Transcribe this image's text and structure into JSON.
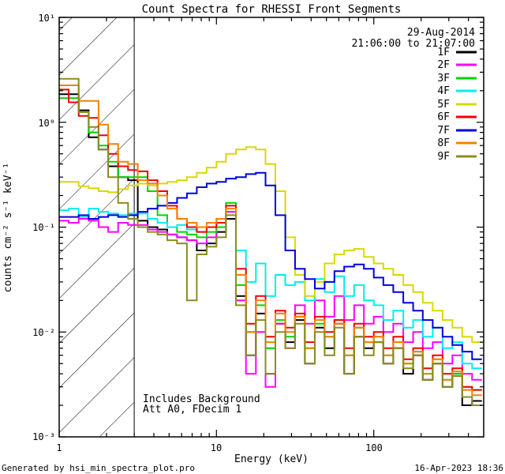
{
  "header": {
    "date": "29-Aug-2014",
    "time_range": "21:06:00 to 21:07:00"
  },
  "annotations": {
    "line1": "Includes Background",
    "line2": "Att A0, FDecim 1"
  },
  "footer": {
    "left": "Generated by hsi_min_spectra_plot.pro",
    "right": "16-Apr-2023 18:36"
  },
  "chart_data": {
    "type": "line",
    "title": "Count Spectra for RHESSI Front Segments",
    "xlabel": "Energy (keV)",
    "ylabel": "counts cm⁻² s⁻¹ keV⁻¹",
    "xscale": "log",
    "yscale": "log",
    "xlim": [
      1,
      500
    ],
    "ylim": [
      0.001,
      10
    ],
    "grid": false,
    "legend_position": "top-right",
    "xticks": {
      "values": [
        1,
        10,
        100
      ],
      "labels": [
        "1",
        "10",
        "100"
      ]
    },
    "yticks": {
      "values": [
        10,
        1,
        0.1,
        0.01,
        0.001
      ],
      "labels": [
        "10¹",
        "10⁰",
        "10⁻¹",
        "10⁻²",
        "10⁻³"
      ]
    },
    "hatch_region": {
      "xmin": 1,
      "xmax": 3
    },
    "bin_edges": [
      1,
      1.15,
      1.33,
      1.54,
      1.78,
      2.05,
      2.37,
      2.74,
      3.16,
      3.65,
      4.22,
      4.87,
      5.62,
      6.49,
      7.5,
      8.66,
      10,
      11.5,
      13.3,
      15.4,
      17.8,
      20.5,
      23.7,
      27.4,
      31.6,
      36.5,
      42.2,
      48.7,
      56.2,
      64.9,
      75,
      86.6,
      100,
      115,
      133,
      154,
      178,
      205,
      237,
      274,
      316,
      365,
      422,
      487
    ],
    "series": [
      {
        "name": "1F",
        "color": "#000000",
        "values": [
          1.85,
          1.85,
          1.3,
          0.72,
          0.55,
          0.38,
          0.3,
          0.28,
          0.115,
          0.1,
          0.095,
          0.085,
          0.08,
          0.075,
          0.06,
          0.07,
          0.09,
          0.12,
          0.022,
          0.006,
          0.015,
          0.004,
          0.012,
          0.008,
          0.013,
          0.005,
          0.011,
          0.007,
          0.012,
          0.004,
          0.009,
          0.007,
          0.008,
          0.005,
          0.007,
          0.004,
          0.006,
          0.0035,
          0.005,
          0.003,
          0.004,
          0.002,
          0.0022
        ]
      },
      {
        "name": "2F",
        "color": "#ff00ff",
        "values": [
          0.115,
          0.11,
          0.12,
          0.115,
          0.1,
          0.09,
          0.11,
          0.105,
          0.105,
          0.095,
          0.09,
          0.085,
          0.08,
          0.075,
          0.07,
          0.08,
          0.1,
          0.14,
          0.02,
          0.004,
          0.01,
          0.003,
          0.012,
          0.007,
          0.018,
          0.012,
          0.02,
          0.014,
          0.022,
          0.013,
          0.018,
          0.012,
          0.014,
          0.01,
          0.012,
          0.008,
          0.01,
          0.007,
          0.008,
          0.005,
          0.006,
          0.004,
          0.0035
        ]
      },
      {
        "name": "3F",
        "color": "#00d500",
        "values": [
          1.7,
          1.7,
          1.25,
          0.8,
          0.6,
          0.42,
          0.3,
          0.3,
          0.3,
          0.22,
          0.13,
          0.1,
          0.09,
          0.085,
          0.08,
          0.09,
          0.1,
          0.17,
          0.028,
          0.01,
          0.018,
          0.007,
          0.013,
          0.009,
          0.014,
          0.007,
          0.012,
          0.009,
          0.013,
          0.006,
          0.011,
          0.008,
          0.009,
          0.006,
          0.008,
          0.005,
          0.0065,
          0.004,
          0.0055,
          0.0035,
          0.004,
          0.003,
          0.0028
        ]
      },
      {
        "name": "4F",
        "color": "#00eeee",
        "values": [
          0.145,
          0.15,
          0.125,
          0.15,
          0.14,
          0.135,
          0.13,
          0.135,
          0.135,
          0.12,
          0.11,
          0.1,
          0.105,
          0.095,
          0.09,
          0.1,
          0.12,
          0.16,
          0.06,
          0.03,
          0.045,
          0.022,
          0.035,
          0.028,
          0.03,
          0.02,
          0.032,
          0.024,
          0.034,
          0.022,
          0.028,
          0.02,
          0.018,
          0.013,
          0.016,
          0.011,
          0.013,
          0.009,
          0.011,
          0.007,
          0.008,
          0.005,
          0.0045
        ]
      },
      {
        "name": "5F",
        "color": "#d9d900",
        "values": [
          0.27,
          0.27,
          0.245,
          0.235,
          0.22,
          0.215,
          0.23,
          0.25,
          0.26,
          0.25,
          0.26,
          0.27,
          0.28,
          0.3,
          0.33,
          0.37,
          0.42,
          0.5,
          0.55,
          0.58,
          0.55,
          0.4,
          0.22,
          0.08,
          0.035,
          0.022,
          0.03,
          0.045,
          0.055,
          0.06,
          0.062,
          0.052,
          0.045,
          0.04,
          0.035,
          0.028,
          0.024,
          0.019,
          0.016,
          0.013,
          0.011,
          0.009,
          0.008
        ]
      },
      {
        "name": "6F",
        "color": "#f50000",
        "values": [
          2.05,
          1.55,
          1.15,
          1.1,
          0.75,
          0.5,
          0.38,
          0.35,
          0.34,
          0.28,
          0.22,
          0.16,
          0.12,
          0.1,
          0.09,
          0.1,
          0.11,
          0.16,
          0.04,
          0.012,
          0.022,
          0.009,
          0.016,
          0.011,
          0.015,
          0.008,
          0.014,
          0.01,
          0.013,
          0.007,
          0.012,
          0.009,
          0.01,
          0.007,
          0.009,
          0.0055,
          0.007,
          0.0045,
          0.006,
          0.004,
          0.0045,
          0.003,
          0.0028
        ]
      },
      {
        "name": "7F",
        "color": "#0000dd",
        "values": [
          0.125,
          0.125,
          0.13,
          0.12,
          0.125,
          0.13,
          0.125,
          0.13,
          0.14,
          0.15,
          0.16,
          0.17,
          0.19,
          0.21,
          0.24,
          0.26,
          0.27,
          0.29,
          0.3,
          0.32,
          0.33,
          0.25,
          0.13,
          0.06,
          0.04,
          0.032,
          0.026,
          0.03,
          0.038,
          0.042,
          0.044,
          0.04,
          0.033,
          0.028,
          0.024,
          0.019,
          0.016,
          0.013,
          0.011,
          0.009,
          0.0075,
          0.0065,
          0.0055
        ]
      },
      {
        "name": "8F",
        "color": "#f88000",
        "values": [
          2.25,
          2.25,
          1.6,
          1.6,
          0.95,
          0.62,
          0.42,
          0.4,
          0.28,
          0.26,
          0.2,
          0.15,
          0.12,
          0.11,
          0.1,
          0.11,
          0.12,
          0.15,
          0.035,
          0.01,
          0.02,
          0.008,
          0.015,
          0.01,
          0.014,
          0.007,
          0.013,
          0.009,
          0.012,
          0.006,
          0.011,
          0.008,
          0.009,
          0.006,
          0.008,
          0.005,
          0.0065,
          0.004,
          0.0055,
          0.0035,
          0.0042,
          0.0028,
          0.0025
        ]
      },
      {
        "name": "9F",
        "color": "#8c8c1e",
        "values": [
          2.6,
          2.6,
          1.25,
          0.9,
          0.55,
          0.3,
          0.17,
          0.12,
          0.1,
          0.09,
          0.085,
          0.075,
          0.07,
          0.02,
          0.055,
          0.065,
          0.08,
          0.13,
          0.018,
          0.006,
          0.013,
          0.004,
          0.01,
          0.007,
          0.012,
          0.005,
          0.01,
          0.006,
          0.011,
          0.004,
          0.009,
          0.006,
          0.008,
          0.005,
          0.007,
          0.0045,
          0.006,
          0.0035,
          0.005,
          0.003,
          0.0038,
          0.0024,
          0.002
        ]
      }
    ]
  }
}
